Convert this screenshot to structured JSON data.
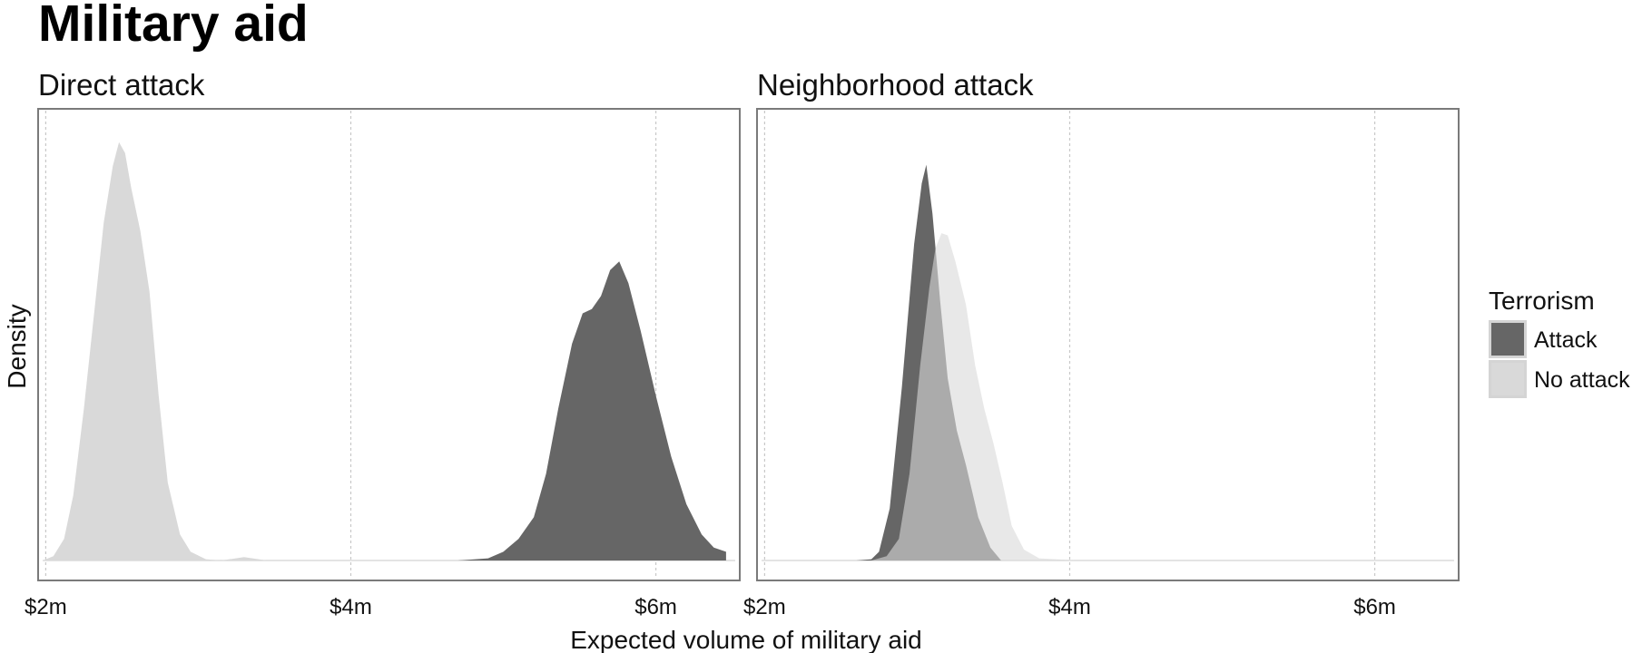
{
  "title": "Military aid",
  "chart_data": {
    "type": "area",
    "xlabel": "Expected volume of military aid",
    "ylabel": "Density",
    "xlim": [
      1.95,
      6.55
    ],
    "x_ticks": [
      2,
      4,
      6
    ],
    "x_tick_labels": [
      "$2m",
      "$4m",
      "$6m"
    ],
    "grid": "vertical dashed at x ticks",
    "legend": {
      "title": "Terrorism",
      "position": "right",
      "entries": [
        {
          "label": "Attack",
          "color": "#666666"
        },
        {
          "label": "No attack",
          "color": "#d9d9d9"
        }
      ]
    },
    "facets": [
      {
        "title": "Direct attack",
        "series": [
          {
            "name": "No attack",
            "color": "#d9d9d9",
            "opacity": 1,
            "points": [
              [
                1.98,
                0
              ],
              [
                2.05,
                0.01
              ],
              [
                2.12,
                0.05
              ],
              [
                2.18,
                0.15
              ],
              [
                2.25,
                0.35
              ],
              [
                2.32,
                0.58
              ],
              [
                2.38,
                0.78
              ],
              [
                2.44,
                0.91
              ],
              [
                2.48,
                0.965
              ],
              [
                2.52,
                0.94
              ],
              [
                2.56,
                0.86
              ],
              [
                2.62,
                0.76
              ],
              [
                2.68,
                0.62
              ],
              [
                2.74,
                0.38
              ],
              [
                2.8,
                0.18
              ],
              [
                2.88,
                0.06
              ],
              [
                2.95,
                0.02
              ],
              [
                3.05,
                0.003
              ],
              [
                3.15,
                0.0
              ],
              [
                3.3,
                0.008
              ],
              [
                3.45,
                0
              ]
            ]
          },
          {
            "name": "Attack",
            "color": "#666666",
            "opacity": 1,
            "points": [
              [
                4.7,
                0
              ],
              [
                4.9,
                0.005
              ],
              [
                5.0,
                0.02
              ],
              [
                5.1,
                0.05
              ],
              [
                5.2,
                0.1
              ],
              [
                5.28,
                0.2
              ],
              [
                5.36,
                0.35
              ],
              [
                5.45,
                0.5
              ],
              [
                5.52,
                0.57
              ],
              [
                5.58,
                0.58
              ],
              [
                5.64,
                0.61
              ],
              [
                5.7,
                0.67
              ],
              [
                5.76,
                0.69
              ],
              [
                5.82,
                0.64
              ],
              [
                5.9,
                0.53
              ],
              [
                6.0,
                0.38
              ],
              [
                6.1,
                0.24
              ],
              [
                6.2,
                0.13
              ],
              [
                6.3,
                0.06
              ],
              [
                6.38,
                0.03
              ],
              [
                6.46,
                0.02
              ]
            ]
          }
        ]
      },
      {
        "title": "Neighborhood attack",
        "series": [
          {
            "name": "Attack",
            "color": "#666666",
            "opacity": 1,
            "points": [
              [
                2.6,
                0
              ],
              [
                2.7,
                0.003
              ],
              [
                2.75,
                0.02
              ],
              [
                2.82,
                0.12
              ],
              [
                2.9,
                0.4
              ],
              [
                2.98,
                0.73
              ],
              [
                3.03,
                0.87
              ],
              [
                3.06,
                0.913
              ],
              [
                3.1,
                0.8
              ],
              [
                3.15,
                0.6
              ],
              [
                3.2,
                0.42
              ],
              [
                3.26,
                0.3
              ],
              [
                3.32,
                0.22
              ],
              [
                3.4,
                0.1
              ],
              [
                3.48,
                0.03
              ],
              [
                3.55,
                0
              ]
            ]
          },
          {
            "name": "No attack",
            "color": "#d9d9d9",
            "opacity": 0.6,
            "points": [
              [
                2.7,
                0
              ],
              [
                2.8,
                0.01
              ],
              [
                2.88,
                0.05
              ],
              [
                2.95,
                0.2
              ],
              [
                3.02,
                0.45
              ],
              [
                3.08,
                0.63
              ],
              [
                3.12,
                0.72
              ],
              [
                3.16,
                0.755
              ],
              [
                3.2,
                0.75
              ],
              [
                3.25,
                0.69
              ],
              [
                3.32,
                0.59
              ],
              [
                3.38,
                0.45
              ],
              [
                3.44,
                0.35
              ],
              [
                3.5,
                0.27
              ],
              [
                3.56,
                0.18
              ],
              [
                3.62,
                0.08
              ],
              [
                3.7,
                0.025
              ],
              [
                3.8,
                0.005
              ],
              [
                3.95,
                0.002
              ],
              [
                4.05,
                0
              ]
            ]
          }
        ]
      }
    ]
  }
}
